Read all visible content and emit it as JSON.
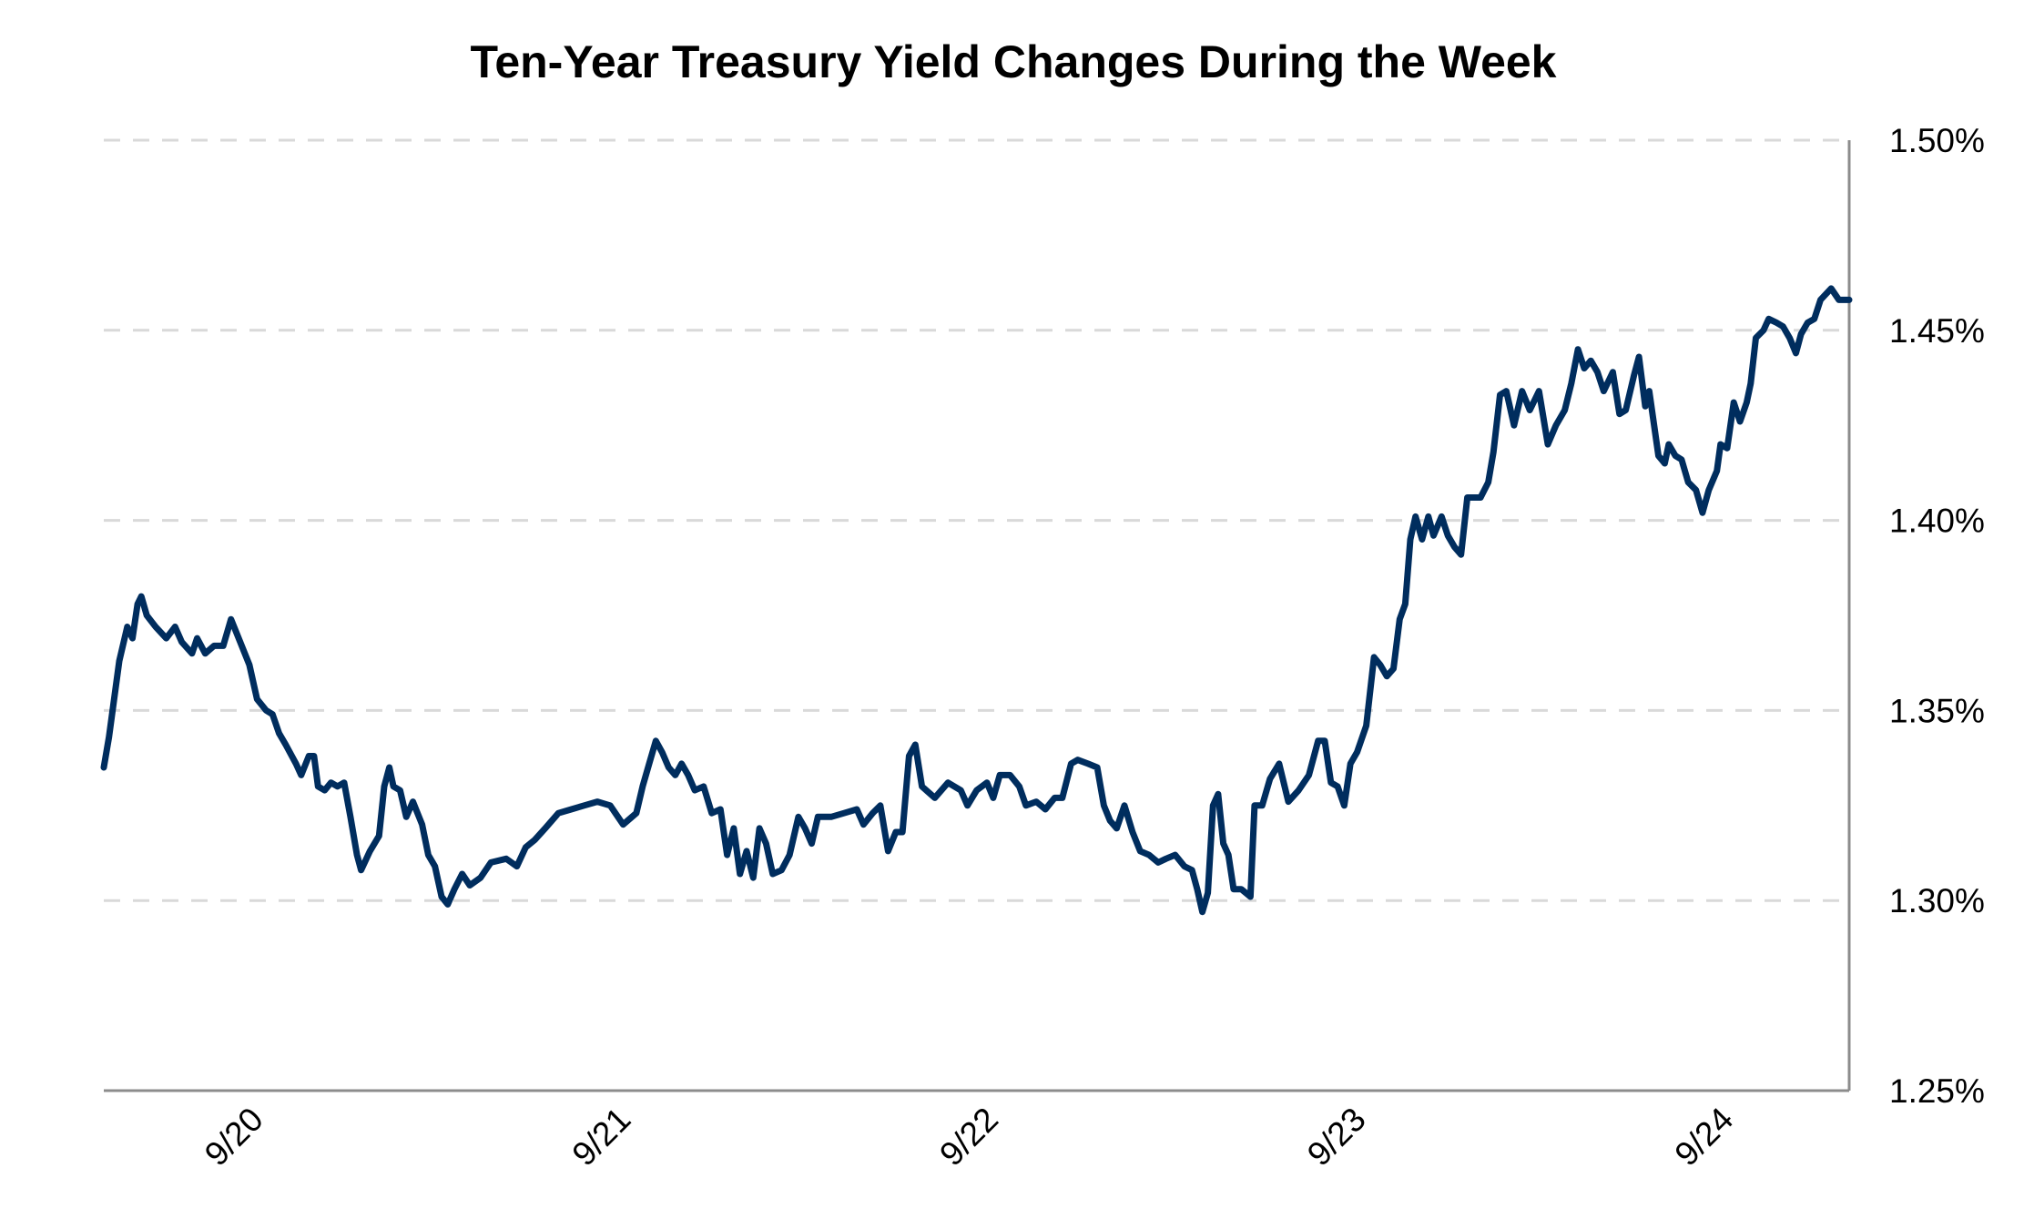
{
  "chart_data": {
    "type": "line",
    "title": "Ten-Year Treasury Yield Changes During the Week",
    "xlabel": "",
    "ylabel": "",
    "x_unit": "days since 9/20",
    "xlim": [
      -0.424,
      4.325
    ],
    "ylim": [
      1.25,
      1.5
    ],
    "grid": true,
    "y_axis_side": "right",
    "y_ticks": [
      1.25,
      1.3,
      1.35,
      1.4,
      1.45,
      1.5
    ],
    "y_tick_labels": [
      "1.25%",
      "1.30%",
      "1.35%",
      "1.40%",
      "1.45%",
      "1.50%"
    ],
    "x_ticks": [
      0,
      1,
      2,
      3,
      4
    ],
    "x_tick_labels": [
      "9/20",
      "9/21",
      "9/22",
      "9/23",
      "9/24"
    ],
    "line_color": "#002d5e",
    "series": [
      {
        "name": "Ten-Year Treasury Yield",
        "x": [
          -0.424,
          -0.41,
          -0.382,
          -0.36,
          -0.346,
          -0.332,
          -0.322,
          -0.307,
          -0.283,
          -0.254,
          -0.23,
          -0.212,
          -0.184,
          -0.17,
          -0.148,
          -0.124,
          -0.099,
          -0.078,
          -0.053,
          -0.028,
          -0.007,
          0.018,
          0.035,
          0.053,
          0.071,
          0.099,
          0.113,
          0.134,
          0.148,
          0.159,
          0.177,
          0.194,
          0.212,
          0.23,
          0.247,
          0.265,
          0.276,
          0.3,
          0.325,
          0.339,
          0.353,
          0.364,
          0.382,
          0.399,
          0.417,
          0.442,
          0.459,
          0.477,
          0.495,
          0.512,
          0.53,
          0.551,
          0.572,
          0.601,
          0.629,
          0.671,
          0.7,
          0.724,
          0.749,
          0.777,
          0.813,
          0.848,
          0.883,
          0.919,
          0.954,
          0.989,
          1.025,
          1.042,
          1.06,
          1.078,
          1.095,
          1.113,
          1.131,
          1.148,
          1.166,
          1.184,
          1.208,
          1.23,
          1.254,
          1.272,
          1.29,
          1.307,
          1.325,
          1.343,
          1.36,
          1.378,
          1.396,
          1.42,
          1.442,
          1.466,
          1.484,
          1.502,
          1.519,
          1.555,
          1.59,
          1.625,
          1.643,
          1.668,
          1.689,
          1.71,
          1.731,
          1.749,
          1.767,
          1.784,
          1.802,
          1.837,
          1.873,
          1.908,
          1.926,
          1.951,
          1.979,
          1.996,
          2.014,
          2.042,
          2.067,
          2.085,
          2.113,
          2.138,
          2.163,
          2.184,
          2.208,
          2.226,
          2.254,
          2.279,
          2.297,
          2.314,
          2.332,
          2.353,
          2.375,
          2.396,
          2.42,
          2.445,
          2.466,
          2.491,
          2.516,
          2.537,
          2.551,
          2.565,
          2.58,
          2.594,
          2.608,
          2.622,
          2.636,
          2.65,
          2.671,
          2.696,
          2.707,
          2.728,
          2.749,
          2.774,
          2.799,
          2.827,
          2.855,
          2.88,
          2.898,
          2.915,
          2.933,
          2.951,
          2.968,
          2.986,
          3.011,
          3.032,
          3.049,
          3.067,
          3.085,
          3.102,
          3.117,
          3.131,
          3.145,
          3.163,
          3.18,
          3.194,
          3.216,
          3.233,
          3.251,
          3.269,
          3.286,
          3.322,
          3.343,
          3.357,
          3.375,
          3.392,
          3.413,
          3.435,
          3.456,
          3.481,
          3.505,
          3.527,
          3.551,
          3.569,
          3.587,
          3.604,
          3.622,
          3.64,
          3.657,
          3.682,
          3.7,
          3.717,
          3.739,
          3.753,
          3.77,
          3.781,
          3.806,
          3.823,
          3.834,
          3.852,
          3.869,
          3.887,
          3.908,
          3.926,
          3.943,
          3.965,
          3.975,
          3.993,
          4.011,
          4.028,
          4.046,
          4.057,
          4.071,
          4.092,
          4.106,
          4.127,
          4.145,
          4.163,
          4.18,
          4.194,
          4.212,
          4.23,
          4.247,
          4.276,
          4.297,
          4.325
        ],
        "y": [
          1.335,
          1.343,
          1.363,
          1.372,
          1.369,
          1.378,
          1.38,
          1.375,
          1.372,
          1.369,
          1.372,
          1.368,
          1.365,
          1.369,
          1.365,
          1.367,
          1.367,
          1.374,
          1.368,
          1.362,
          1.353,
          1.35,
          1.349,
          1.344,
          1.341,
          1.336,
          1.333,
          1.338,
          1.338,
          1.33,
          1.329,
          1.331,
          1.33,
          1.331,
          1.322,
          1.312,
          1.308,
          1.313,
          1.317,
          1.33,
          1.335,
          1.33,
          1.329,
          1.322,
          1.326,
          1.32,
          1.312,
          1.309,
          1.301,
          1.299,
          1.303,
          1.307,
          1.304,
          1.306,
          1.31,
          1.311,
          1.309,
          1.314,
          1.316,
          1.319,
          1.323,
          1.324,
          1.325,
          1.326,
          1.325,
          1.32,
          1.323,
          1.33,
          1.336,
          1.342,
          1.339,
          1.335,
          1.333,
          1.336,
          1.333,
          1.329,
          1.33,
          1.323,
          1.324,
          1.312,
          1.319,
          1.307,
          1.313,
          1.306,
          1.319,
          1.315,
          1.307,
          1.308,
          1.312,
          1.322,
          1.319,
          1.315,
          1.322,
          1.322,
          1.323,
          1.324,
          1.32,
          1.323,
          1.325,
          1.313,
          1.318,
          1.318,
          1.338,
          1.341,
          1.33,
          1.327,
          1.331,
          1.329,
          1.325,
          1.329,
          1.331,
          1.327,
          1.333,
          1.333,
          1.33,
          1.325,
          1.326,
          1.324,
          1.327,
          1.327,
          1.336,
          1.337,
          1.336,
          1.335,
          1.325,
          1.321,
          1.319,
          1.325,
          1.318,
          1.313,
          1.312,
          1.31,
          1.311,
          1.312,
          1.309,
          1.308,
          1.303,
          1.297,
          1.302,
          1.325,
          1.328,
          1.315,
          1.312,
          1.303,
          1.303,
          1.301,
          1.325,
          1.325,
          1.332,
          1.336,
          1.326,
          1.329,
          1.333,
          1.342,
          1.342,
          1.331,
          1.33,
          1.325,
          1.336,
          1.339,
          1.346,
          1.364,
          1.362,
          1.359,
          1.361,
          1.374,
          1.378,
          1.395,
          1.401,
          1.395,
          1.401,
          1.396,
          1.401,
          1.396,
          1.393,
          1.391,
          1.406,
          1.406,
          1.41,
          1.418,
          1.433,
          1.434,
          1.425,
          1.434,
          1.429,
          1.434,
          1.42,
          1.425,
          1.429,
          1.436,
          1.445,
          1.44,
          1.442,
          1.439,
          1.434,
          1.439,
          1.428,
          1.429,
          1.438,
          1.443,
          1.43,
          1.434,
          1.417,
          1.415,
          1.42,
          1.417,
          1.416,
          1.41,
          1.408,
          1.402,
          1.408,
          1.413,
          1.42,
          1.419,
          1.431,
          1.426,
          1.431,
          1.436,
          1.448,
          1.45,
          1.453,
          1.452,
          1.451,
          1.448,
          1.444,
          1.449,
          1.452,
          1.453,
          1.458,
          1.461,
          1.458,
          1.458
        ]
      }
    ]
  }
}
